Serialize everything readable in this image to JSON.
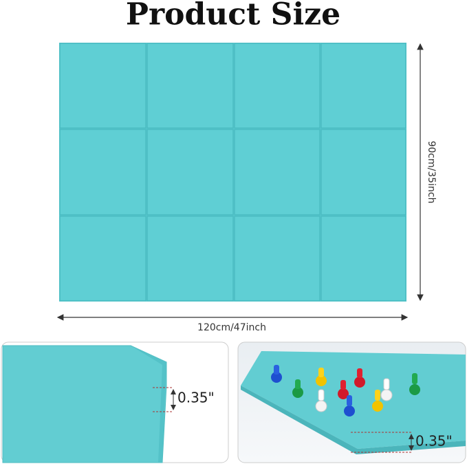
{
  "header": {
    "title": "Product Size"
  },
  "dimensions": {
    "height": "90cm/35inch",
    "width": "120cm/47inch"
  },
  "thickness_labels": [
    "0.35\"",
    "0.35\""
  ]
}
